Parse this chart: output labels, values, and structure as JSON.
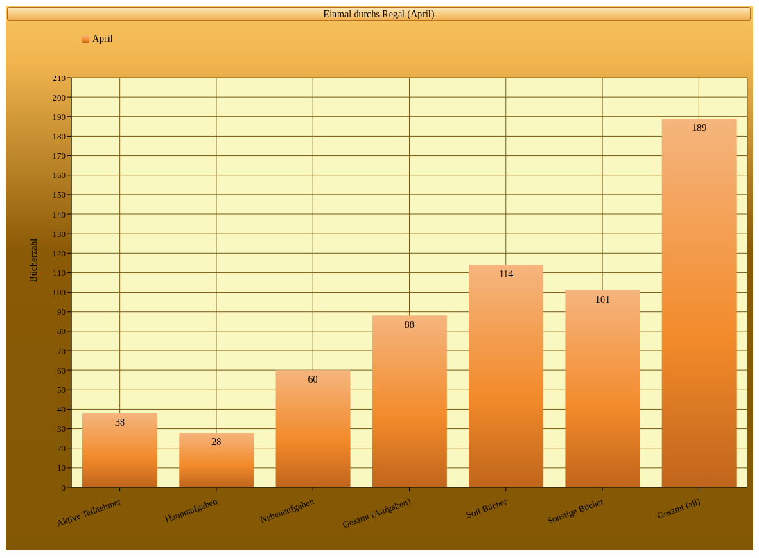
{
  "chart_data": {
    "type": "bar",
    "title": "Einmal durchs Regal (April)",
    "ylabel": "Bücherzahl",
    "categories": [
      "Aktive Teilnehmer",
      "Hauptaufgaben",
      "Nebenaufgaben",
      "Gesamt (Aufgaben)",
      "Soll Bücher",
      "Sonstige Bücher",
      "Gesamt (all)"
    ],
    "series": [
      {
        "name": "April",
        "color": "#f28a2a",
        "values": [
          38,
          28,
          60,
          88,
          114,
          101,
          189
        ]
      }
    ],
    "ylim": [
      0,
      210
    ],
    "yticks": [
      0,
      10,
      20,
      30,
      40,
      50,
      60,
      70,
      80,
      90,
      100,
      110,
      120,
      130,
      140,
      150,
      160,
      170,
      180,
      190,
      200,
      210
    ],
    "grid": true,
    "legend": "top left",
    "data_labels": true
  }
}
